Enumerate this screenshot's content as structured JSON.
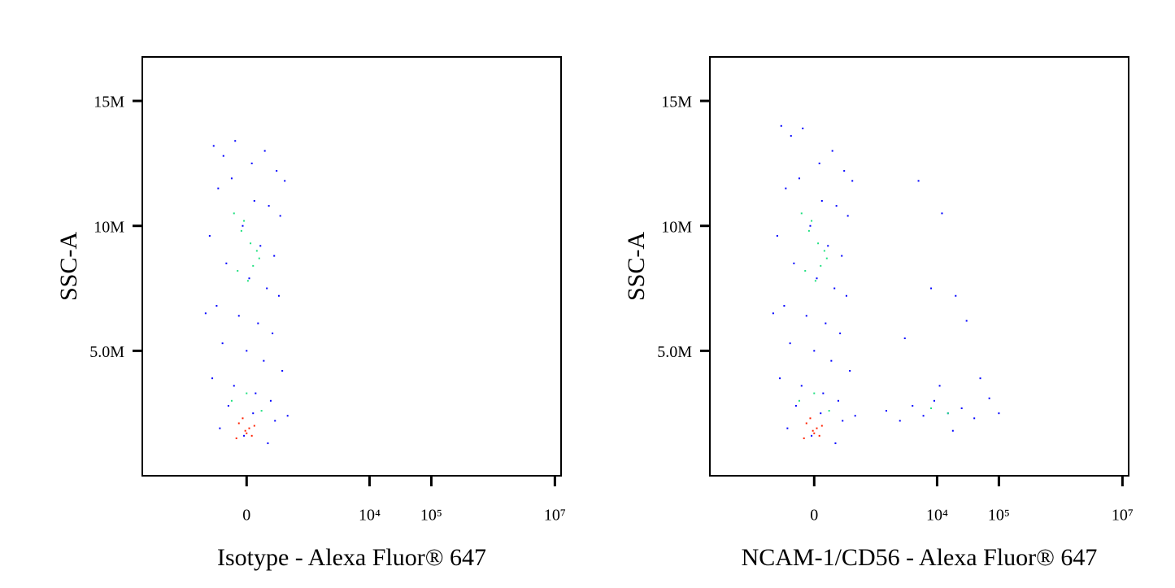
{
  "chart_data": [
    {
      "type": "scatter",
      "x_label": "Isotype - Alexa Fluor® 647",
      "y_label": "SSC-A",
      "xscale": "biexponential",
      "linear_width": 205,
      "xlim": [
        -5000,
        12600000
      ],
      "ylim": [
        0,
        16760000
      ],
      "xticks": [
        {
          "value": 0,
          "label": "0"
        },
        {
          "value": 10000,
          "label": "10⁴"
        },
        {
          "value": 100000,
          "label": "10⁵"
        },
        {
          "value": 10000000,
          "label": "10⁷"
        }
      ],
      "yticks": [
        {
          "value": 5000000,
          "label": "5.0M"
        },
        {
          "value": 10000000,
          "label": "10M"
        },
        {
          "value": 15000000,
          "label": "15M"
        }
      ],
      "series": [
        {
          "color": "#0000ff",
          "x": [
            -320,
            -200,
            -90,
            40,
            150,
            280,
            400,
            -260,
            -120,
            60,
            190,
            330,
            -380,
            -30,
            110,
            250,
            -170,
            20,
            170,
            310,
            -280,
            -60,
            90,
            230,
            -210,
            0,
            140,
            360,
            -340,
            -100,
            70,
            210,
            -150,
            50,
            260,
            -240,
            -20,
            180,
            450,
            -450
          ],
          "values": [
            13200000,
            12800000,
            13400000,
            12500000,
            13000000,
            12200000,
            11800000,
            11500000,
            11900000,
            11000000,
            10800000,
            10400000,
            9600000,
            10000000,
            9200000,
            8800000,
            8500000,
            7900000,
            7500000,
            7200000,
            6800000,
            6400000,
            6100000,
            5700000,
            5300000,
            5000000,
            4600000,
            4200000,
            3900000,
            3600000,
            3300000,
            3000000,
            2800000,
            2500000,
            2200000,
            1900000,
            1600000,
            1300000,
            2400000,
            6500000
          ]
        },
        {
          "color": "#20e080",
          "x": [
            -100,
            -40,
            30,
            100,
            -70,
            10,
            80,
            -20,
            50,
            -120,
            120,
            0
          ],
          "values": [
            10500000,
            9800000,
            9300000,
            8700000,
            8200000,
            7800000,
            9000000,
            10200000,
            8400000,
            3000000,
            2600000,
            3300000
          ]
        },
        {
          "color": "#ff2000",
          "x": [
            -60,
            -10,
            40,
            -30,
            20,
            -80,
            60,
            0
          ],
          "values": [
            2100000,
            1800000,
            1600000,
            2300000,
            1900000,
            1500000,
            2000000,
            1700000
          ]
        }
      ]
    },
    {
      "type": "scatter",
      "x_label": "NCAM-1/CD56 - Alexa Fluor® 647",
      "y_label": "SSC-A",
      "xscale": "biexponential",
      "linear_width": 205,
      "xlim": [
        -5000,
        12600000
      ],
      "ylim": [
        0,
        16760000
      ],
      "xticks": [
        {
          "value": 0,
          "label": "0"
        },
        {
          "value": 10000,
          "label": "10⁴"
        },
        {
          "value": 100000,
          "label": "10⁵"
        },
        {
          "value": 10000000,
          "label": "10⁷"
        }
      ],
      "yticks": [
        {
          "value": 5000000,
          "label": "5.0M"
        },
        {
          "value": 10000000,
          "label": "10M"
        },
        {
          "value": 15000000,
          "label": "15M"
        }
      ],
      "series": [
        {
          "color": "#0000ff",
          "x": [
            -320,
            -200,
            -90,
            40,
            150,
            280,
            400,
            -260,
            -120,
            60,
            190,
            330,
            -380,
            -30,
            110,
            250,
            -170,
            20,
            170,
            310,
            -280,
            -60,
            90,
            230,
            -210,
            0,
            140,
            360,
            -340,
            -100,
            70,
            210,
            -150,
            50,
            260,
            -240,
            -20,
            180,
            450,
            -450,
            1500,
            2500,
            4000,
            6000,
            9000,
            15000,
            25000,
            40000,
            70000,
            100000,
            3000,
            8000,
            20000,
            50000,
            12000,
            5000,
            30000,
            11000,
            18000
          ],
          "values": [
            14000000,
            13600000,
            13900000,
            12500000,
            13000000,
            12200000,
            11800000,
            11500000,
            11900000,
            11000000,
            10800000,
            10400000,
            9600000,
            10000000,
            9200000,
            8800000,
            8500000,
            7900000,
            7500000,
            7200000,
            6800000,
            6400000,
            6100000,
            5700000,
            5300000,
            5000000,
            4600000,
            4200000,
            3900000,
            3600000,
            3300000,
            3000000,
            2800000,
            2500000,
            2200000,
            1900000,
            1600000,
            1300000,
            2400000,
            6500000,
            2600000,
            2200000,
            2800000,
            2400000,
            3000000,
            2500000,
            2700000,
            2300000,
            3100000,
            2500000,
            5500000,
            7500000,
            7200000,
            3900000,
            10500000,
            11800000,
            6200000,
            3600000,
            1800000
          ]
        },
        {
          "color": "#20e080",
          "x": [
            -100,
            -40,
            30,
            100,
            -70,
            10,
            80,
            -20,
            50,
            -120,
            120,
            0,
            8000,
            15000
          ],
          "values": [
            10500000,
            9800000,
            9300000,
            8700000,
            8200000,
            7800000,
            9000000,
            10200000,
            8400000,
            3000000,
            2600000,
            3300000,
            2700000,
            2500000
          ]
        },
        {
          "color": "#ff2000",
          "x": [
            -60,
            -10,
            40,
            -30,
            20,
            -80,
            60,
            0
          ],
          "values": [
            2100000,
            1800000,
            1600000,
            2300000,
            1900000,
            1500000,
            2000000,
            1700000
          ]
        }
      ]
    }
  ]
}
